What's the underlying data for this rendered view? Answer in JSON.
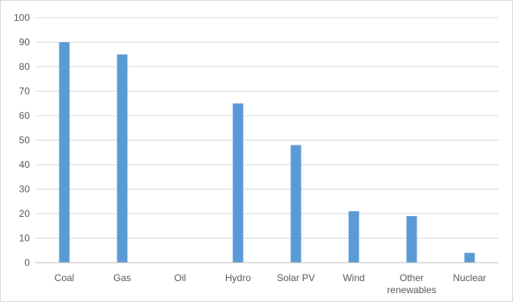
{
  "chart_data": {
    "type": "bar",
    "categories": [
      [
        "Coal"
      ],
      [
        "Gas"
      ],
      [
        "Oil"
      ],
      [
        "Hydro"
      ],
      [
        "Solar PV"
      ],
      [
        "Wind"
      ],
      [
        "Other",
        "renewables"
      ],
      [
        "Nuclear"
      ]
    ],
    "values": [
      90,
      85,
      0,
      65,
      48,
      21,
      19,
      4
    ],
    "ylim": [
      0,
      100
    ],
    "yticks": [
      0,
      10,
      20,
      30,
      40,
      50,
      60,
      70,
      80,
      90,
      100
    ],
    "grid": true,
    "legend": "none",
    "colors": {
      "bar": "#5b9bd5",
      "grid": "#d9d9d9",
      "axis": "#bfbfbf",
      "text": "#595959"
    }
  }
}
